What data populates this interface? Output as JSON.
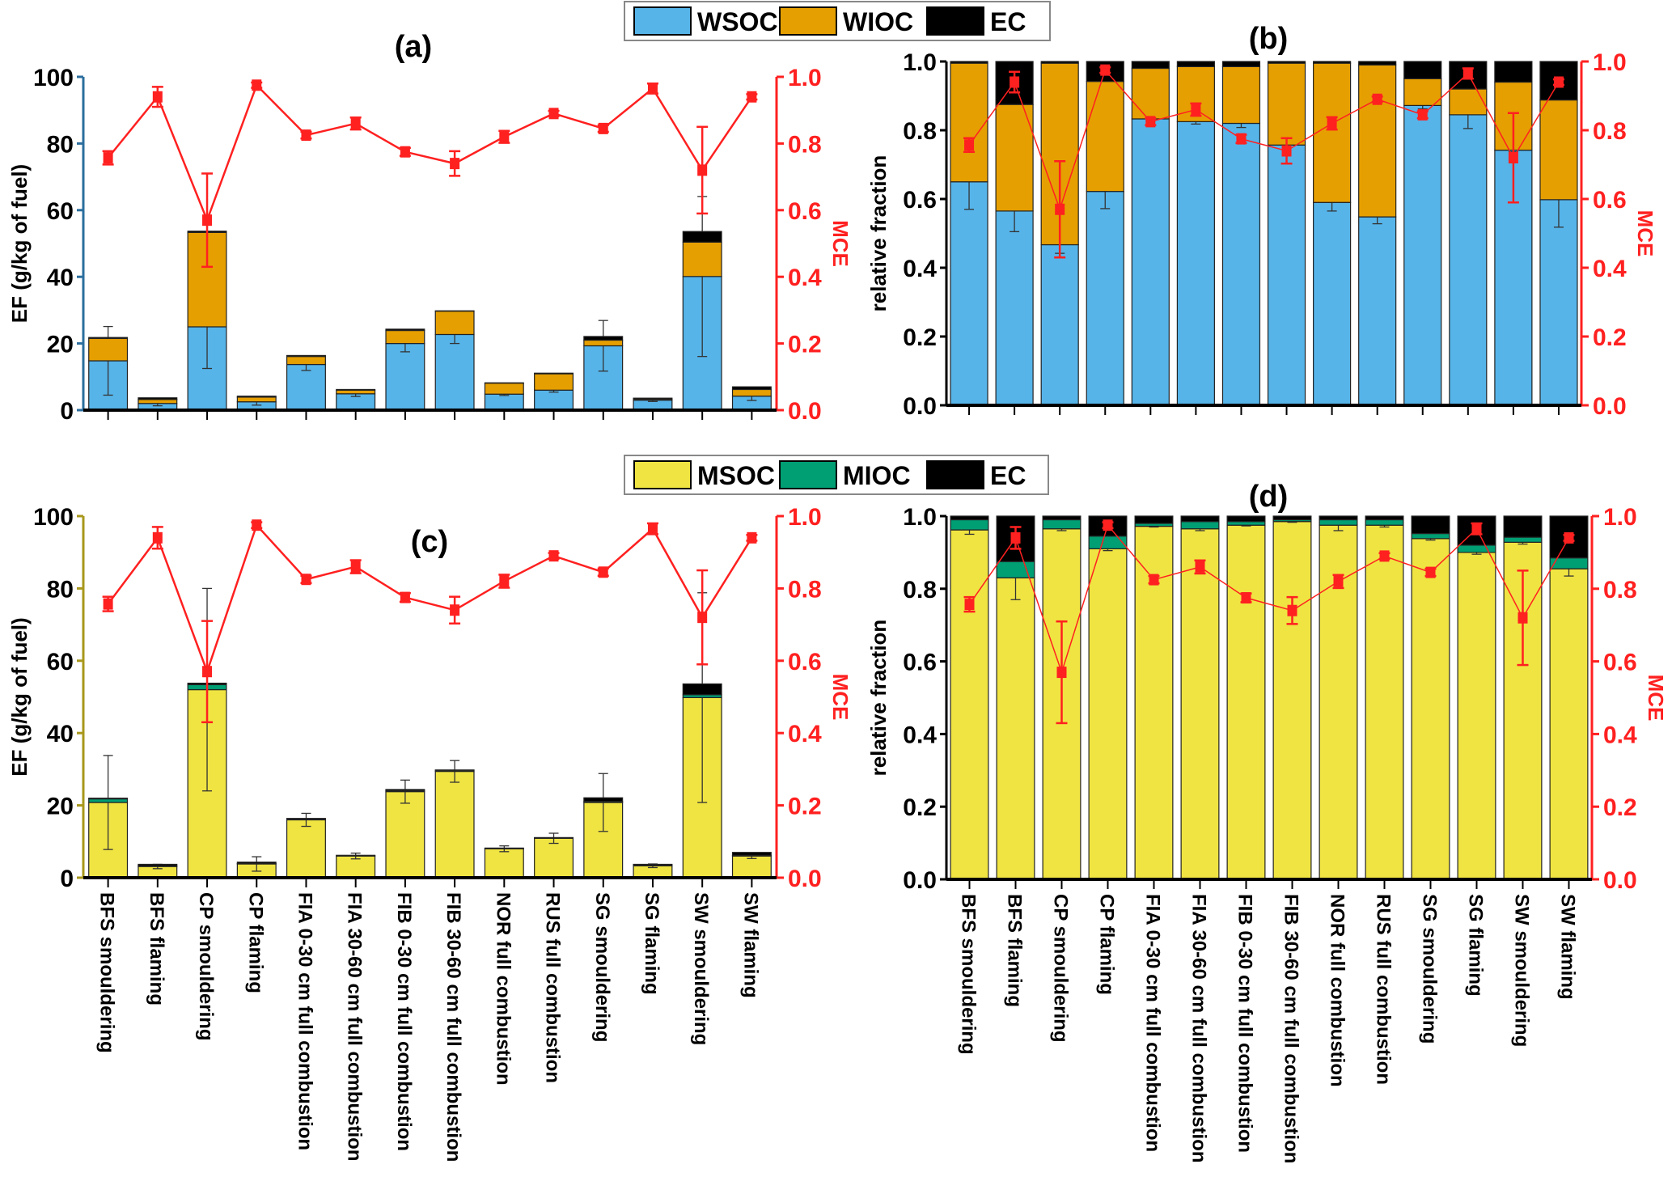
{
  "categories": [
    "BFS smouldering",
    "BFS flaming",
    "CP smouldering",
    "CP flaming",
    "FIA 0-30 cm full combustion",
    "FIA 30-60 cm full combustion",
    "FIB 0-30 cm full combustion",
    "FIB 30-60 cm full combustion",
    "NOR full combustion",
    "RUS full combustion",
    "SG smouldering",
    "SG flaming",
    "SW smouldering",
    "SW flaming"
  ],
  "legends": [
    {
      "items": [
        {
          "label": "WSOC",
          "color": "#56B4E9"
        },
        {
          "label": "WIOC",
          "color": "#E69F00"
        },
        {
          "label": "EC",
          "color": "#000000"
        }
      ]
    },
    {
      "items": [
        {
          "label": "MSOC",
          "color": "#F0E442"
        },
        {
          "label": "MIOC",
          "color": "#009E73"
        },
        {
          "label": "EC",
          "color": "#000000"
        }
      ]
    }
  ],
  "mce": {
    "label": "MCE",
    "color": "#FF2020",
    "values": [
      0.757,
      0.94,
      0.57,
      0.975,
      0.825,
      0.86,
      0.775,
      0.74,
      0.82,
      0.89,
      0.845,
      0.965,
      0.72,
      0.94
    ],
    "err": [
      0.02,
      0.03,
      0.14,
      0.008,
      0.01,
      0.018,
      0.012,
      0.037,
      0.018,
      0.008,
      0.01,
      0.015,
      0.13,
      0.008
    ]
  },
  "chart_data": [
    {
      "type": "bar",
      "stacked": true,
      "title": "(a)",
      "ylabel": "EF (g/kg of fuel)",
      "y2label": "MCE",
      "ylim": [
        0,
        100
      ],
      "y2lim": [
        0,
        1.0
      ],
      "yticks": [
        "0",
        "20",
        "40",
        "60",
        "80",
        "100"
      ],
      "y2ticks": [
        "0.0",
        "0.2",
        "0.4",
        "0.6",
        "0.8",
        "1.0"
      ],
      "axis_color": "#2B6E9E",
      "show_categories": false,
      "series": [
        {
          "name": "WSOC",
          "color": "#56B4E9",
          "values": [
            14.8,
            2.0,
            25.0,
            2.5,
            13.7,
            4.9,
            20.0,
            22.7,
            4.8,
            6.0,
            19.3,
            3.0,
            40.1,
            4.2
          ],
          "err": [
            10.3,
            0.7,
            12.5,
            1.0,
            1.8,
            0.8,
            2.5,
            2.7,
            0.4,
            0.6,
            7.6,
            0.4,
            24,
            1.3
          ]
        },
        {
          "name": "WIOC",
          "color": "#E69F00",
          "values": [
            6.7,
            1.2,
            28.3,
            1.4,
            2.4,
            1.1,
            3.9,
            7.0,
            3.3,
            4.9,
            1.7,
            0.3,
            10.3,
            2.0
          ]
        },
        {
          "name": "EC",
          "color": "#000000",
          "values": [
            0.3,
            0.5,
            0.4,
            0.3,
            0.3,
            0.2,
            0.4,
            0.1,
            0.1,
            0.2,
            1.1,
            0.3,
            3.2,
            0.8
          ]
        }
      ]
    },
    {
      "type": "bar",
      "stacked": true,
      "title": "(b)",
      "ylabel": "relative fraction",
      "y2label": "MCE",
      "ylim": [
        0,
        1.0
      ],
      "y2lim": [
        0,
        1.0
      ],
      "yticks": [
        "0.0",
        "0.2",
        "0.4",
        "0.6",
        "0.8",
        "1.0"
      ],
      "y2ticks": [
        "0.0",
        "0.2",
        "0.4",
        "0.6",
        "0.8",
        "1.0"
      ],
      "axis_color": "#000000",
      "show_categories": false,
      "series": [
        {
          "name": "WSOC",
          "color": "#56B4E9",
          "values": [
            0.65,
            0.565,
            0.467,
            0.622,
            0.833,
            0.825,
            0.82,
            0.757,
            0.59,
            0.548,
            0.872,
            0.845,
            0.742,
            0.598
          ],
          "err": [
            0.08,
            0.06,
            0.025,
            0.05,
            0.005,
            0.007,
            0.012,
            0.005,
            0.025,
            0.02,
            0.01,
            0.04,
            0.005,
            0.08
          ]
        },
        {
          "name": "WIOC",
          "color": "#E69F00",
          "values": [
            0.345,
            0.31,
            0.528,
            0.32,
            0.147,
            0.16,
            0.165,
            0.238,
            0.405,
            0.442,
            0.078,
            0.075,
            0.198,
            0.29
          ]
        },
        {
          "name": "EC",
          "color": "#000000",
          "values": [
            0.005,
            0.125,
            0.005,
            0.058,
            0.02,
            0.015,
            0.015,
            0.005,
            0.005,
            0.01,
            0.05,
            0.08,
            0.06,
            0.112
          ]
        }
      ]
    },
    {
      "type": "bar",
      "stacked": true,
      "title": "(c)",
      "ylabel": "EF (g/kg of fuel)",
      "y2label": "MCE",
      "ylim": [
        0,
        100
      ],
      "y2lim": [
        0,
        1.0
      ],
      "yticks": [
        "0",
        "20",
        "40",
        "60",
        "80",
        "100"
      ],
      "y2ticks": [
        "0.0",
        "0.2",
        "0.4",
        "0.6",
        "0.8",
        "1.0"
      ],
      "axis_color": "#A8981C",
      "show_categories": true,
      "series": [
        {
          "name": "MSOC",
          "color": "#F0E442",
          "values": [
            20.8,
            3.1,
            52.0,
            3.8,
            16.0,
            6.0,
            23.8,
            29.4,
            8.0,
            10.9,
            20.8,
            3.3,
            49.8,
            6.0
          ],
          "err": [
            13,
            0.6,
            28,
            2,
            1.8,
            0.8,
            3.2,
            3,
            0.8,
            1.4,
            8,
            0.5,
            29,
            0.7
          ]
        },
        {
          "name": "MIOC",
          "color": "#009E73",
          "values": [
            1.0,
            0.2,
            1.4,
            0.1,
            0.1,
            0.05,
            0.3,
            0.3,
            0.1,
            0.1,
            0.3,
            0.1,
            0.8,
            0.2
          ]
        },
        {
          "name": "EC",
          "color": "#000000",
          "values": [
            0.2,
            0.4,
            0.4,
            0.4,
            0.3,
            0.15,
            0.3,
            0.1,
            0.1,
            0.1,
            1.0,
            0.3,
            3.0,
            0.8
          ]
        }
      ]
    },
    {
      "type": "bar",
      "stacked": true,
      "title": "(d)",
      "ylabel": "relative fraction",
      "y2label": "MCE",
      "ylim": [
        0,
        1.0
      ],
      "y2lim": [
        0,
        1.0
      ],
      "yticks": [
        "0.0",
        "0.2",
        "0.4",
        "0.6",
        "0.8",
        "1.0"
      ],
      "y2ticks": [
        "0.0",
        "0.2",
        "0.4",
        "0.6",
        "0.8",
        "1.0"
      ],
      "axis_color": "#000000",
      "show_categories": true,
      "series": [
        {
          "name": "MSOC",
          "color": "#F0E442",
          "values": [
            0.962,
            0.83,
            0.965,
            0.91,
            0.972,
            0.965,
            0.975,
            0.985,
            0.975,
            0.975,
            0.938,
            0.9,
            0.928,
            0.855
          ],
          "err": [
            0.012,
            0.06,
            0.005,
            0.005,
            0.002,
            0.005,
            0.002,
            0.002,
            0.015,
            0.005,
            0.004,
            0.005,
            0.005,
            0.02
          ]
        },
        {
          "name": "MIOC",
          "color": "#009E73",
          "values": [
            0.028,
            0.045,
            0.025,
            0.035,
            0.008,
            0.02,
            0.01,
            0.005,
            0.015,
            0.015,
            0.014,
            0.02,
            0.014,
            0.03
          ]
        },
        {
          "name": "EC",
          "color": "#000000",
          "values": [
            0.01,
            0.125,
            0.01,
            0.055,
            0.02,
            0.015,
            0.015,
            0.01,
            0.01,
            0.01,
            0.048,
            0.08,
            0.058,
            0.115
          ]
        }
      ]
    }
  ]
}
